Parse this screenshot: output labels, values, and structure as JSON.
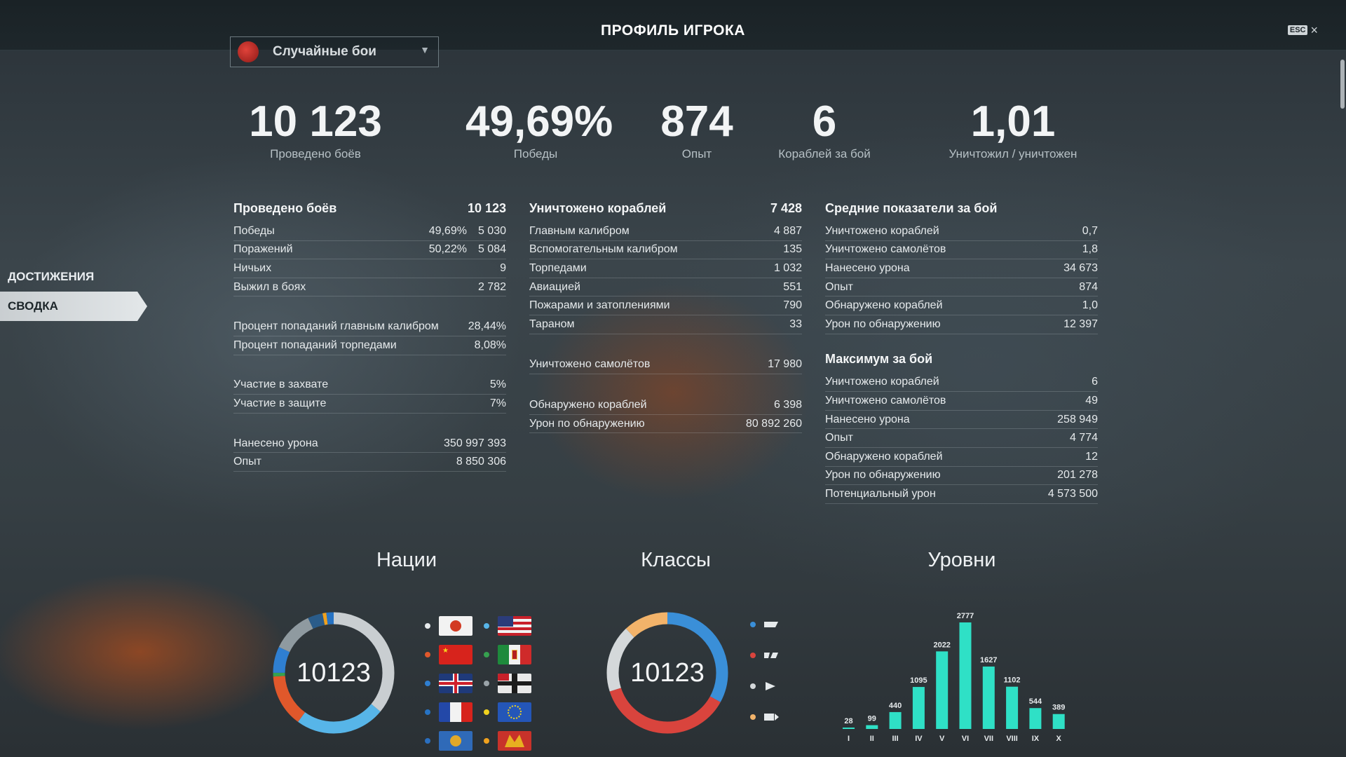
{
  "window": {
    "title": "ПРОФИЛЬ ИГРОКА",
    "esc_key": "ESC",
    "close_glyph": "×"
  },
  "mode_select": {
    "selected": "Случайные бои"
  },
  "left_nav": [
    {
      "label": "ДОСТИЖЕНИЯ",
      "active": false
    },
    {
      "label": "СВОДКА",
      "active": true
    }
  ],
  "big_stats": [
    {
      "value": "10 123",
      "label": "Проведено боёв"
    },
    {
      "value": "49,69%",
      "label": "Победы"
    },
    {
      "value": "874",
      "label": "Опыт"
    },
    {
      "value": "6",
      "label": "Кораблей за бой"
    },
    {
      "value": "1,01",
      "label": "Уничтожил / уничтожен"
    }
  ],
  "battles": {
    "header": {
      "label": "Проведено боёв",
      "value": "10 123"
    },
    "rows": [
      {
        "name": "Победы",
        "pct": "49,69%",
        "value": "5 030"
      },
      {
        "name": "Поражений",
        "pct": "50,22%",
        "value": "5 084"
      },
      {
        "name": "Ничьих",
        "pct": "",
        "value": "9"
      },
      {
        "name": "Выжил в боях",
        "pct": "",
        "value": "2 782"
      }
    ],
    "hits": [
      {
        "name": "Процент попаданий главным калибром",
        "value": "28,44%"
      },
      {
        "name": "Процент попаданий торпедами",
        "value": "8,08%"
      }
    ],
    "capture": [
      {
        "name": "Участие в захвате",
        "value": "5%"
      },
      {
        "name": "Участие в защите",
        "value": "7%"
      }
    ],
    "totals": [
      {
        "name": "Нанесено урона",
        "value": "350 997 393"
      },
      {
        "name": "Опыт",
        "value": "8 850 306"
      }
    ]
  },
  "destroyed": {
    "header": {
      "label": "Уничтожено кораблей",
      "value": "7 428"
    },
    "rows": [
      {
        "name": "Главным калибром",
        "value": "4 887"
      },
      {
        "name": "Вспомогательным калибром",
        "value": "135"
      },
      {
        "name": "Торпедами",
        "value": "1 032"
      },
      {
        "name": "Авиацией",
        "value": "551"
      },
      {
        "name": "Пожарами и затоплениями",
        "value": "790"
      },
      {
        "name": "Тараном",
        "value": "33"
      }
    ],
    "planes": [
      {
        "name": "Уничтожено самолётов",
        "value": "17 980"
      }
    ],
    "spotting": [
      {
        "name": "Обнаружено кораблей",
        "value": "6 398"
      },
      {
        "name": "Урон по обнаружению",
        "value": "80 892 260"
      }
    ]
  },
  "averages": {
    "header": "Средние показатели за бой",
    "rows": [
      {
        "name": "Уничтожено кораблей",
        "value": "0,7"
      },
      {
        "name": "Уничтожено самолётов",
        "value": "1,8"
      },
      {
        "name": "Нанесено урона",
        "value": "34 673"
      },
      {
        "name": "Опыт",
        "value": "874"
      },
      {
        "name": "Обнаружено кораблей",
        "value": "1,0"
      },
      {
        "name": "Урон по обнаружению",
        "value": "12 397"
      }
    ],
    "max_header": "Максимум за бой",
    "max_rows": [
      {
        "name": "Уничтожено кораблей",
        "value": "6"
      },
      {
        "name": "Уничтожено самолётов",
        "value": "49"
      },
      {
        "name": "Нанесено урона",
        "value": "258 949"
      },
      {
        "name": "Опыт",
        "value": "4 774"
      },
      {
        "name": "Обнаружено кораблей",
        "value": "12"
      },
      {
        "name": "Урон по обнаружению",
        "value": "201 278"
      },
      {
        "name": "Потенциальный урон",
        "value": "4 573 500"
      }
    ]
  },
  "charts": {
    "nations_title": "Нации",
    "classes_title": "Классы",
    "tiers_title": "Уровни"
  },
  "chart_data": [
    {
      "type": "pie",
      "name": "Нации",
      "center_label": "10123",
      "segments": [
        {
          "flag": "japan",
          "color": "#c9ced1",
          "value": 0.36
        },
        {
          "flag": "ussr",
          "color": "#57b5e8",
          "value": 0.24
        },
        {
          "flag": "uk",
          "color": "#e0582b",
          "value": 0.14
        },
        {
          "flag": "france",
          "color": "#36a14f",
          "value": 0.01
        },
        {
          "flag": "pan-asia",
          "color": "#2f7fd1",
          "value": 0.07
        },
        {
          "flag": "usa",
          "color": "#8f9aa0",
          "value": 0.11
        },
        {
          "flag": "italy",
          "color": "#2a5c8a",
          "value": 0.04
        },
        {
          "flag": "germany",
          "color": "#f0a11e",
          "value": 0.01
        },
        {
          "flag": "europe",
          "color": "#2673c4",
          "value": 0.02
        }
      ],
      "legend": [
        {
          "flag": "japan",
          "dot": "#e6eaec"
        },
        {
          "flag": "usa",
          "dot": "#57b5e8"
        },
        {
          "flag": "ussr",
          "dot": "#e0582b"
        },
        {
          "flag": "italy",
          "dot": "#36a14f"
        },
        {
          "flag": "uk",
          "dot": "#2f7fd1"
        },
        {
          "flag": "germany",
          "dot": "#9aa4a9"
        },
        {
          "flag": "france",
          "dot": "#2673c4"
        },
        {
          "flag": "europe",
          "dot": "#f0d21e"
        },
        {
          "flag": "pan-asia",
          "dot": "#2a6fc0"
        },
        {
          "flag": "pan-america",
          "dot": "#f0a11e"
        }
      ]
    },
    {
      "type": "pie",
      "name": "Классы",
      "center_label": "10123",
      "segments": [
        {
          "class": "destroyer",
          "color": "#3a8fd8",
          "value": 0.33
        },
        {
          "class": "cruiser",
          "color": "#d9443d",
          "value": 0.37
        },
        {
          "class": "battleship",
          "color": "#d4d8da",
          "value": 0.18
        },
        {
          "class": "aircraft-carrier",
          "color": "#f2b36a",
          "value": 0.12
        }
      ],
      "legend": [
        {
          "class": "destroyer",
          "dot": "#3a8fd8"
        },
        {
          "class": "cruiser",
          "dot": "#d9443d"
        },
        {
          "class": "battleship",
          "dot": "#d4d8da"
        },
        {
          "class": "aircraft-carrier",
          "dot": "#f2b36a"
        }
      ]
    },
    {
      "type": "bar",
      "name": "Уровни",
      "categories": [
        "I",
        "II",
        "III",
        "IV",
        "V",
        "VI",
        "VII",
        "VIII",
        "IX",
        "X"
      ],
      "values": [
        28,
        99,
        440,
        1095,
        2022,
        2777,
        1627,
        1102,
        544,
        389
      ],
      "color": "#2fe0c6"
    }
  ]
}
